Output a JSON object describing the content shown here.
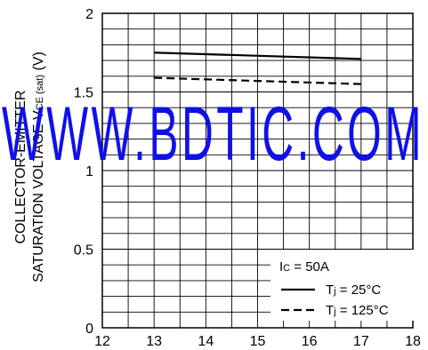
{
  "chart_data": {
    "type": "line",
    "title": "",
    "xlabel": "",
    "ylabel_line1": "COLLECTOR-EMITTER",
    "ylabel_line2_prefix": "SATURATION VOLTAGE V",
    "ylabel_line2_sub": "CE (sat)",
    "ylabel_line2_suffix": " (V)",
    "xlim": [
      12,
      18
    ],
    "ylim": [
      0,
      2
    ],
    "xticks": [
      "12",
      "13",
      "14",
      "15",
      "16",
      "17",
      "18"
    ],
    "yticks": [
      "0",
      "0.5",
      "1",
      "1.5",
      "2"
    ],
    "grid": true,
    "series": [
      {
        "name": "Tj = 25°C",
        "style": "solid",
        "points": [
          [
            13,
            1.75
          ],
          [
            17,
            1.71
          ]
        ]
      },
      {
        "name": "Tj = 125°C",
        "style": "dashed",
        "points": [
          [
            13,
            1.59
          ],
          [
            17,
            1.55
          ]
        ]
      }
    ],
    "legend": {
      "placement": "bottom-right",
      "condition_main": "I",
      "condition_sub": "C",
      "condition_rest": " = 50A",
      "entries": [
        {
          "main": "T",
          "sub": "j",
          "rest": " = 25°C"
        },
        {
          "main": "T",
          "sub": "j",
          "rest": " = 125°C"
        }
      ]
    }
  },
  "watermark": "WWW.BDTIC.COM",
  "colors": {
    "watermark": "#1010e8",
    "line": "#000000",
    "grid": "#000000"
  }
}
